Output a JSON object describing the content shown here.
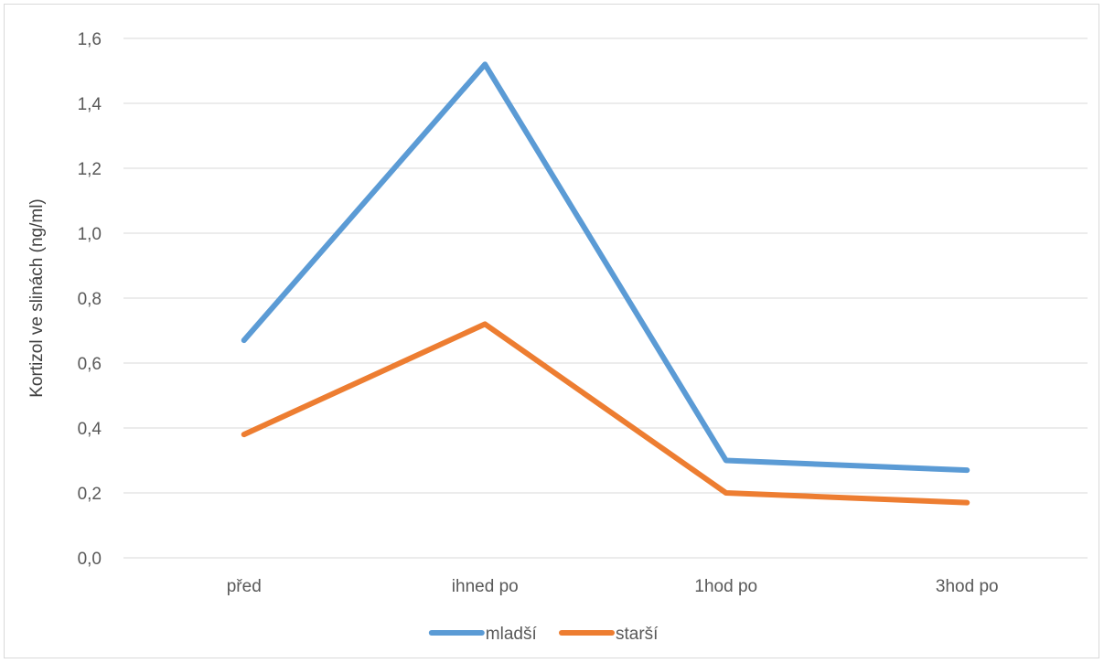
{
  "chart_data": {
    "type": "line",
    "title": "",
    "xlabel": "",
    "ylabel": "Kortizol ve slinách (ng/ml)",
    "categories": [
      "před",
      "ihned po",
      "1hod po",
      "3hod po"
    ],
    "series": [
      {
        "name": "mladší",
        "color": "#5b9bd5",
        "values": [
          0.67,
          1.52,
          0.3,
          0.27
        ]
      },
      {
        "name": "starší",
        "color": "#ed7d31",
        "values": [
          0.38,
          0.72,
          0.2,
          0.17
        ]
      }
    ],
    "ylim": [
      0,
      1.6
    ],
    "yticks": [
      "0,0",
      "0,2",
      "0,4",
      "0,6",
      "0,8",
      "1,0",
      "1,2",
      "1,4",
      "1,6"
    ],
    "grid": true,
    "legend_position": "bottom"
  }
}
